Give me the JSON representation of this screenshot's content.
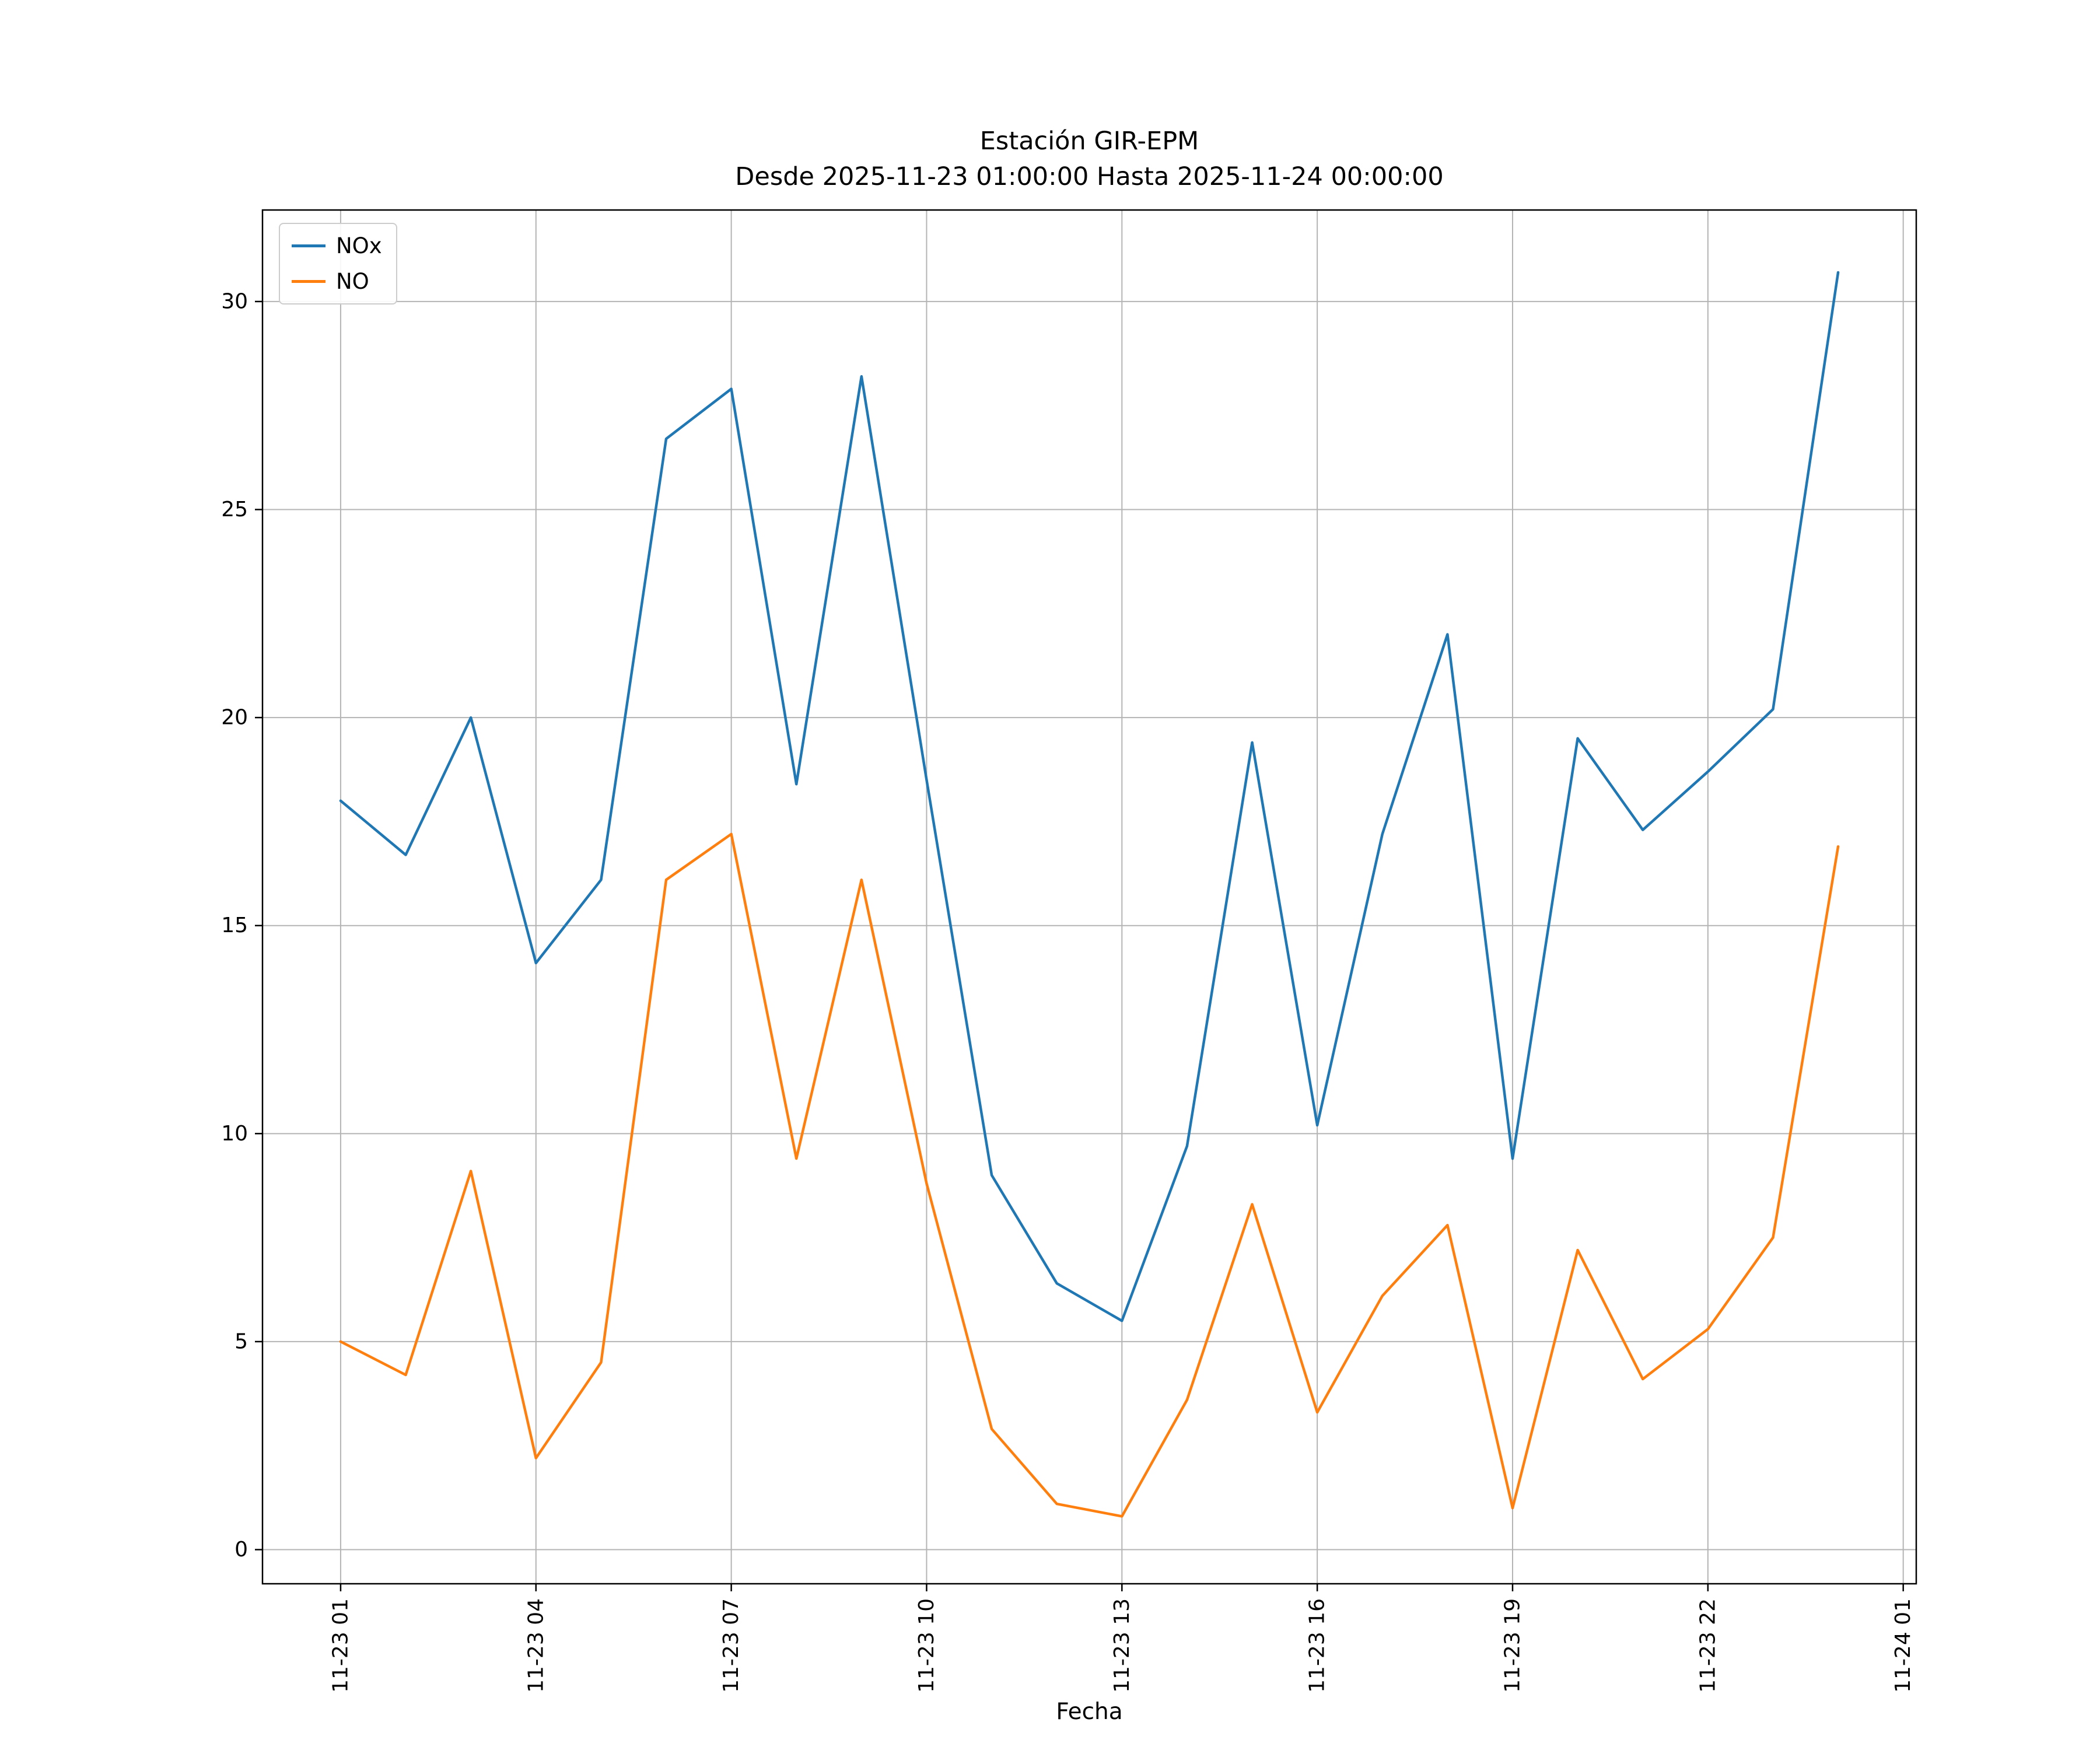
{
  "figure": {
    "background": "#ffffff"
  },
  "chart_data": {
    "type": "line",
    "title_line1": "Estación GIR-EPM",
    "title_line2": "Desde 2025-11-23 01:00:00 Hasta 2025-11-24 00:00:00",
    "xlabel": "Fecha",
    "ylabel": "",
    "grid": true,
    "legend_position": "upper left",
    "x_hours": [
      1,
      2,
      3,
      4,
      5,
      6,
      7,
      8,
      9,
      10,
      11,
      12,
      13,
      14,
      15,
      16,
      17,
      18,
      19,
      20,
      21,
      22,
      23,
      24
    ],
    "series": [
      {
        "name": "NOx",
        "color": "#1f77b4",
        "values": [
          18.0,
          16.7,
          20.0,
          14.1,
          16.1,
          26.7,
          27.9,
          18.4,
          28.2,
          18.5,
          9.0,
          6.4,
          5.5,
          9.7,
          19.4,
          10.2,
          17.2,
          22.0,
          9.4,
          19.5,
          17.3,
          18.7,
          20.2,
          30.7
        ]
      },
      {
        "name": "NO",
        "color": "#ff7f0e",
        "values": [
          5.0,
          4.2,
          9.1,
          2.2,
          4.5,
          16.1,
          17.2,
          9.4,
          16.1,
          8.8,
          2.9,
          1.1,
          0.8,
          3.6,
          8.3,
          3.3,
          6.1,
          7.8,
          1.0,
          7.2,
          4.1,
          5.3,
          7.5,
          16.9
        ]
      }
    ],
    "xticks": [
      {
        "pos": 1,
        "label": "11-23 01"
      },
      {
        "pos": 4,
        "label": "11-23 04"
      },
      {
        "pos": 7,
        "label": "11-23 07"
      },
      {
        "pos": 10,
        "label": "11-23 10"
      },
      {
        "pos": 13,
        "label": "11-23 13"
      },
      {
        "pos": 16,
        "label": "11-23 16"
      },
      {
        "pos": 19,
        "label": "11-23 19"
      },
      {
        "pos": 22,
        "label": "11-23 22"
      },
      {
        "pos": 25,
        "label": "11-24 01"
      }
    ],
    "yticks": [
      0,
      5,
      10,
      15,
      20,
      25,
      30
    ],
    "xlim": [
      -0.2,
      25.2
    ],
    "ylim": [
      -0.82,
      32.2
    ],
    "colors": {
      "grid": "#b4b4b4",
      "spine": "#000000"
    }
  }
}
